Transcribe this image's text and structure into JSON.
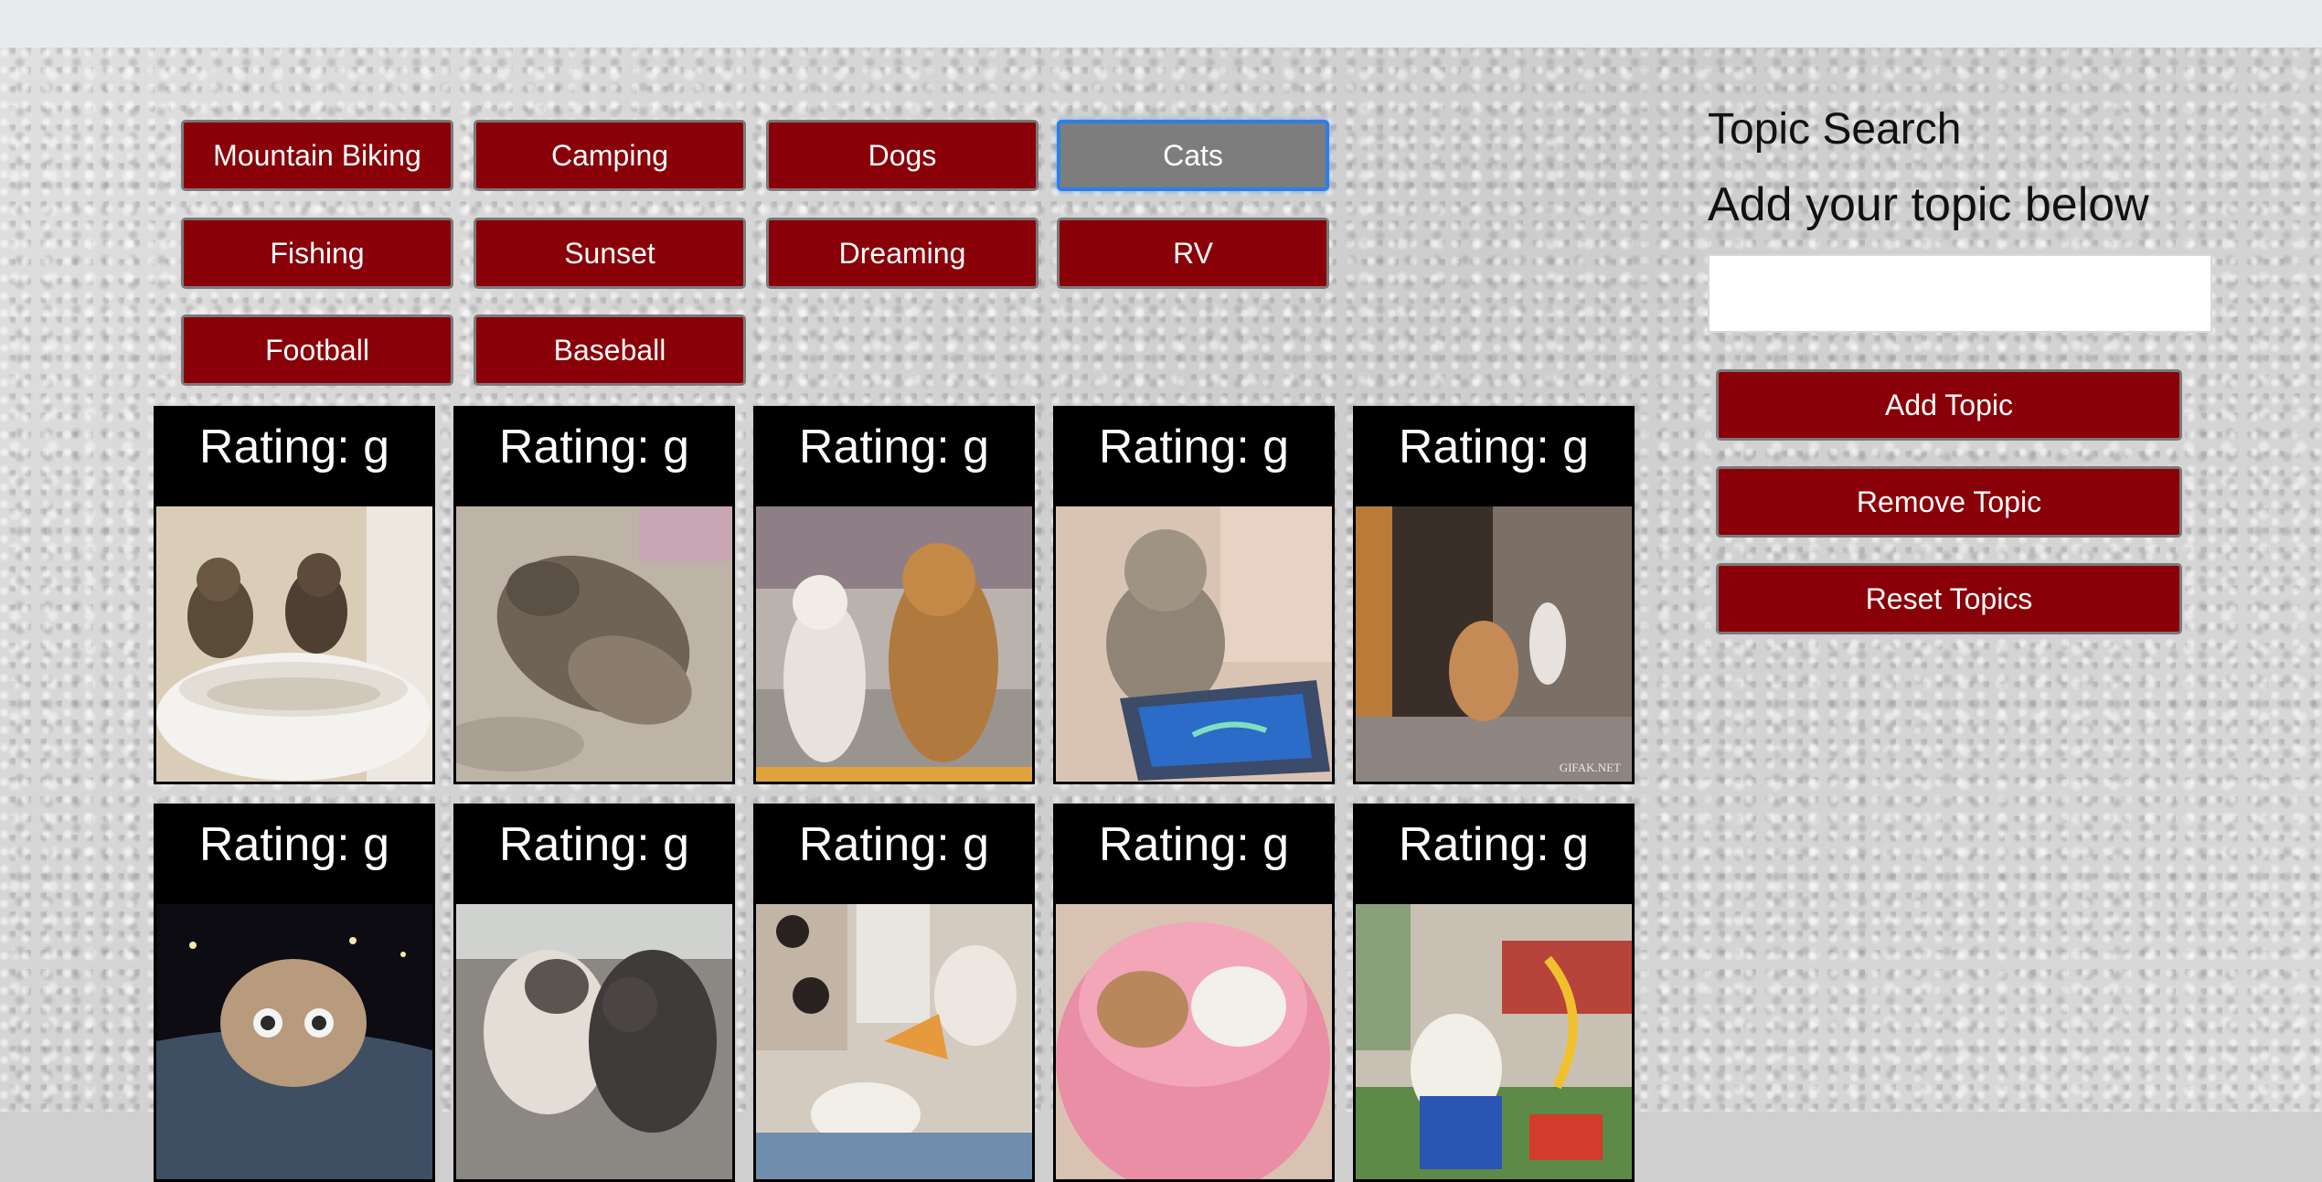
{
  "topics": [
    {
      "label": "Mountain Biking",
      "active": false
    },
    {
      "label": "Camping",
      "active": false
    },
    {
      "label": "Dogs",
      "active": false
    },
    {
      "label": "Cats",
      "active": true
    },
    {
      "label": "Fishing",
      "active": false
    },
    {
      "label": "Sunset",
      "active": false
    },
    {
      "label": "Dreaming",
      "active": false
    },
    {
      "label": "RV",
      "active": false
    },
    {
      "label": "Football",
      "active": false
    },
    {
      "label": "Baseball",
      "active": false
    }
  ],
  "gifs": [
    {
      "rating": "Rating: g"
    },
    {
      "rating": "Rating: g"
    },
    {
      "rating": "Rating: g"
    },
    {
      "rating": "Rating: g"
    },
    {
      "rating": "Rating: g",
      "watermark": "GIFAK.NET"
    },
    {
      "rating": "Rating: g"
    },
    {
      "rating": "Rating: g"
    },
    {
      "rating": "Rating: g"
    },
    {
      "rating": "Rating: g"
    },
    {
      "rating": "Rating: g"
    }
  ],
  "sidebar": {
    "title": "Topic Search",
    "subtitle": "Add your topic below",
    "input_value": "",
    "add_label": "Add Topic",
    "remove_label": "Remove Topic",
    "reset_label": "Reset Topics"
  },
  "colors": {
    "button": "#8a0008",
    "active_button": "#7d7d7d",
    "active_border": "#2d7ee8",
    "card_bg": "#000000"
  }
}
